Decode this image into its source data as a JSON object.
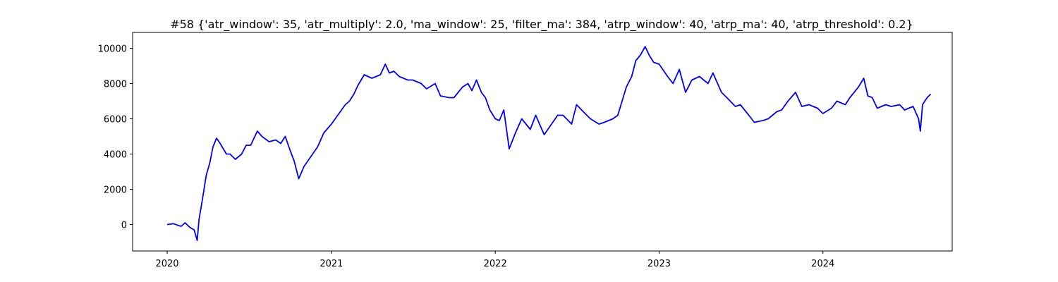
{
  "chart_data": {
    "type": "line",
    "title": "#58 {'atr_window': 35, 'atr_multiply': 2.0, 'ma_window': 25, 'filter_ma': 384, 'atrp_window': 40, 'atrp_ma': 40, 'atrp_threshold': 0.2}",
    "xlabel": "",
    "ylabel": "",
    "xlim": [
      "2019-10-16",
      "2024-10-15"
    ],
    "ylim": [
      -1500,
      10900
    ],
    "x_ticks": [
      "2020-01-01",
      "2021-01-01",
      "2022-01-01",
      "2023-01-01",
      "2024-01-01"
    ],
    "x_tick_labels": [
      "2020",
      "2021",
      "2022",
      "2023",
      "2024"
    ],
    "y_ticks": [
      0,
      2000,
      4000,
      6000,
      8000,
      10000
    ],
    "y_tick_labels": [
      "0",
      "2000",
      "4000",
      "6000",
      "8000",
      "10000"
    ],
    "grid": false,
    "series": [
      {
        "color": "#0000ff",
        "x": [
          "2020-01-01",
          "2020-01-15",
          "2020-02-01",
          "2020-02-10",
          "2020-02-20",
          "2020-03-01",
          "2020-03-08",
          "2020-03-12",
          "2020-03-20",
          "2020-03-28",
          "2020-04-05",
          "2020-04-12",
          "2020-04-20",
          "2020-04-28",
          "2020-05-05",
          "2020-05-12",
          "2020-05-20",
          "2020-06-01",
          "2020-06-15",
          "2020-06-25",
          "2020-07-05",
          "2020-07-20",
          "2020-07-30",
          "2020-08-15",
          "2020-08-30",
          "2020-09-10",
          "2020-09-20",
          "2020-10-01",
          "2020-10-10",
          "2020-10-20",
          "2020-11-01",
          "2020-11-20",
          "2020-12-01",
          "2020-12-15",
          "2021-01-01",
          "2021-01-15",
          "2021-02-01",
          "2021-02-10",
          "2021-02-20",
          "2021-03-01",
          "2021-03-15",
          "2021-04-01",
          "2021-04-20",
          "2021-05-01",
          "2021-05-10",
          "2021-05-20",
          "2021-06-01",
          "2021-06-20",
          "2021-07-01",
          "2021-07-20",
          "2021-08-01",
          "2021-08-20",
          "2021-09-01",
          "2021-09-20",
          "2021-10-01",
          "2021-10-20",
          "2021-11-01",
          "2021-11-10",
          "2021-11-20",
          "2021-12-01",
          "2021-12-10",
          "2021-12-20",
          "2022-01-01",
          "2022-01-10",
          "2022-01-20",
          "2022-02-01",
          "2022-02-15",
          "2022-03-01",
          "2022-03-20",
          "2022-04-01",
          "2022-04-20",
          "2022-05-01",
          "2022-05-20",
          "2022-06-01",
          "2022-06-20",
          "2022-07-01",
          "2022-07-20",
          "2022-08-01",
          "2022-08-20",
          "2022-09-01",
          "2022-09-20",
          "2022-10-01",
          "2022-10-20",
          "2022-11-01",
          "2022-11-10",
          "2022-11-20",
          "2022-12-01",
          "2022-12-10",
          "2022-12-20",
          "2023-01-01",
          "2023-01-20",
          "2023-02-01",
          "2023-02-15",
          "2023-03-01",
          "2023-03-15",
          "2023-04-01",
          "2023-04-20",
          "2023-05-01",
          "2023-05-20",
          "2023-06-01",
          "2023-06-20",
          "2023-07-01",
          "2023-07-20",
          "2023-08-01",
          "2023-08-20",
          "2023-09-01",
          "2023-09-20",
          "2023-10-01",
          "2023-10-15",
          "2023-11-01",
          "2023-11-15",
          "2023-12-01",
          "2023-12-20",
          "2024-01-01",
          "2024-01-20",
          "2024-02-01",
          "2024-02-20",
          "2024-03-01",
          "2024-03-20",
          "2024-04-01",
          "2024-04-10",
          "2024-04-20",
          "2024-05-01",
          "2024-05-20",
          "2024-06-01",
          "2024-06-20",
          "2024-07-01",
          "2024-07-10",
          "2024-07-20",
          "2024-08-01",
          "2024-08-05",
          "2024-08-10",
          "2024-08-20",
          "2024-08-28"
        ],
        "y": [
          0,
          50,
          -100,
          100,
          -150,
          -300,
          -900,
          300,
          1500,
          2800,
          3500,
          4400,
          4900,
          4600,
          4300,
          4000,
          4000,
          3700,
          4000,
          4500,
          4500,
          5300,
          5000,
          4700,
          4800,
          4600,
          5000,
          4200,
          3600,
          2600,
          3300,
          4000,
          4400,
          5200,
          5700,
          6200,
          6800,
          7000,
          7400,
          7900,
          8500,
          8300,
          8500,
          9100,
          8600,
          8700,
          8400,
          8200,
          8200,
          8000,
          7700,
          8000,
          7300,
          7200,
          7200,
          7800,
          8000,
          7600,
          8200,
          7500,
          7200,
          6500,
          6000,
          5900,
          6500,
          4300,
          5200,
          6000,
          5400,
          6200,
          5100,
          5500,
          6200,
          6200,
          5700,
          6800,
          6300,
          6000,
          5700,
          5800,
          6000,
          6200,
          7800,
          8400,
          9300,
          9600,
          10100,
          9600,
          9200,
          9100,
          8400,
          8000,
          8800,
          7500,
          8200,
          8400,
          8000,
          8600,
          7500,
          7200,
          6700,
          6800,
          6200,
          5800,
          5900,
          6000,
          6400,
          6500,
          7000,
          7500,
          6700,
          6800,
          6600,
          6300,
          6600,
          7000,
          6800,
          7200,
          7800,
          8300,
          7300,
          7200,
          6600,
          6800,
          6700,
          6800,
          6500,
          6600,
          6700,
          6000,
          5300,
          6800,
          7200,
          7400
        ]
      }
    ]
  }
}
